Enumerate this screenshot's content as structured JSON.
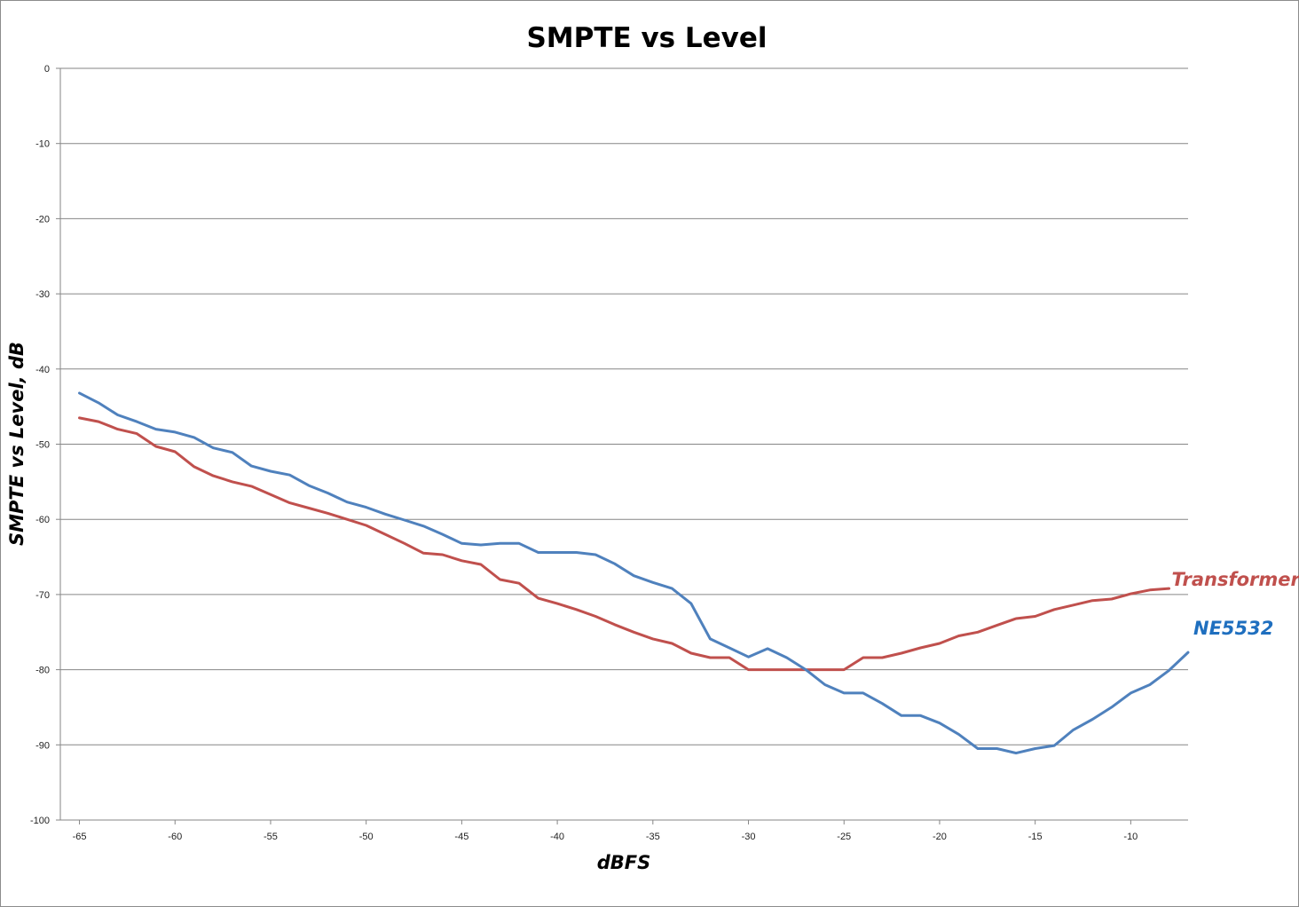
{
  "chart_data": {
    "type": "line",
    "title": "SMPTE vs Level",
    "xlabel": "dBFS",
    "ylabel": "SMPTE vs Level, dB",
    "xlim": [
      -66,
      -7
    ],
    "ylim": [
      -100,
      0
    ],
    "xticks": [
      -65,
      -60,
      -55,
      -50,
      -45,
      -40,
      -35,
      -30,
      -25,
      -20,
      -15,
      -10
    ],
    "yticks": [
      0,
      -10,
      -20,
      -30,
      -40,
      -50,
      -60,
      -70,
      -80,
      -90,
      -100
    ],
    "grid": "horizontal",
    "series": [
      {
        "name": "Transformer",
        "color": "#c0504d",
        "x": [
          -65,
          -64,
          -63,
          -62,
          -61,
          -60,
          -59,
          -58,
          -57,
          -56,
          -55,
          -54,
          -53,
          -52,
          -51,
          -50,
          -49,
          -48,
          -47,
          -46,
          -45,
          -44,
          -43,
          -42,
          -41,
          -40,
          -39,
          -38,
          -37,
          -36,
          -35,
          -34,
          -33,
          -32,
          -31,
          -30,
          -29,
          -28,
          -27,
          -26,
          -25,
          -24,
          -23,
          -22,
          -21,
          -20,
          -19,
          -18,
          -17,
          -16,
          -15,
          -14,
          -13,
          -12,
          -11,
          -10,
          -9,
          -8
        ],
        "y": [
          -46.5,
          -47,
          -48,
          -48.6,
          -50.3,
          -51,
          -53,
          -54.2,
          -55,
          -55.6,
          -56.7,
          -57.8,
          -58.5,
          -59.2,
          -60,
          -60.8,
          -62,
          -63.2,
          -64.5,
          -64.7,
          -65.5,
          -66,
          -68,
          -68.5,
          -70.5,
          -71.2,
          -72,
          -72.9,
          -74,
          -75,
          -75.9,
          -76.5,
          -77.8,
          -78.4,
          -78.4,
          -80,
          -80,
          -80,
          -80,
          -80,
          -80,
          -78.4,
          -78.4,
          -77.8,
          -77.1,
          -76.5,
          -75.5,
          -75,
          -74.1,
          -73.2,
          -72.9,
          -72,
          -71.4,
          -70.8,
          -70.6,
          -69.9,
          -69.4,
          -69.2
        ]
      },
      {
        "name": "NE5532",
        "color": "#4f81bd",
        "label_color": "#1f6fbf",
        "x": [
          -65,
          -64,
          -63,
          -62,
          -61,
          -60,
          -59,
          -58,
          -57,
          -56,
          -55,
          -54,
          -53,
          -52,
          -51,
          -50,
          -49,
          -48,
          -47,
          -46,
          -45,
          -44,
          -43,
          -42,
          -41,
          -40,
          -39,
          -38,
          -37,
          -36,
          -35,
          -34,
          -33,
          -32,
          -31,
          -30,
          -29,
          -28,
          -27,
          -26,
          -25,
          -24,
          -23,
          -22,
          -21,
          -20,
          -19,
          -18,
          -17,
          -16,
          -15,
          -14,
          -13,
          -12,
          -11,
          -10,
          -9,
          -8,
          -7
        ],
        "y": [
          -43.2,
          -44.5,
          -46.1,
          -47,
          -48,
          -48.4,
          -49.1,
          -50.5,
          -51.1,
          -52.9,
          -53.6,
          -54.1,
          -55.5,
          -56.5,
          -57.7,
          -58.4,
          -59.3,
          -60.1,
          -60.9,
          -62,
          -63.2,
          -63.4,
          -63.2,
          -63.2,
          -64.4,
          -64.4,
          -64.4,
          -64.7,
          -65.9,
          -67.5,
          -68.4,
          -69.2,
          -71.2,
          -75.9,
          -77.1,
          -78.3,
          -77.2,
          -78.4,
          -80,
          -82,
          -83.1,
          -83.1,
          -84.5,
          -86.1,
          -86.1,
          -87.1,
          -88.6,
          -90.5,
          -90.5,
          -91.1,
          -90.5,
          -90.1,
          -88,
          -86.6,
          -85,
          -83.1,
          -82,
          -80.1,
          -77.7
        ]
      }
    ]
  }
}
